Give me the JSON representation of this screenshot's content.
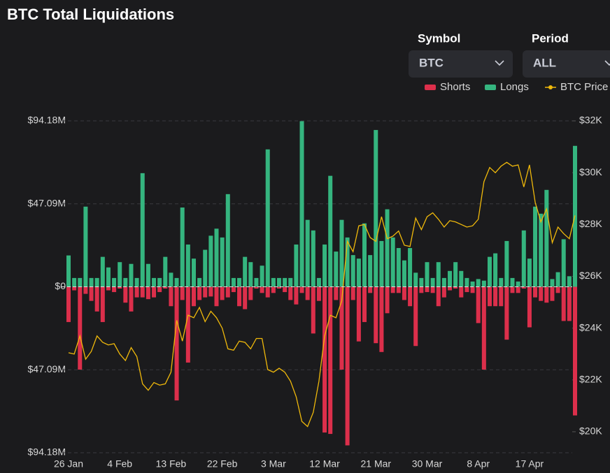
{
  "filters": [
    {
      "label": "Symbol",
      "value": "BTC"
    },
    {
      "label": "Period",
      "value": "ALL"
    }
  ],
  "chart_data": {
    "type": "bar",
    "title": "BTC Total Liquidations",
    "categories": [
      "26 Jan",
      null,
      null,
      null,
      null,
      null,
      null,
      null,
      null,
      "4 Feb",
      null,
      null,
      null,
      null,
      null,
      null,
      null,
      null,
      "13 Feb",
      null,
      null,
      null,
      null,
      null,
      null,
      null,
      null,
      "22 Feb",
      null,
      null,
      null,
      null,
      null,
      null,
      null,
      null,
      "3 Mar",
      null,
      null,
      null,
      null,
      null,
      null,
      null,
      null,
      "12 Mar",
      null,
      null,
      null,
      null,
      null,
      null,
      null,
      null,
      "21 Mar",
      null,
      null,
      null,
      null,
      null,
      null,
      null,
      null,
      "30 Mar",
      null,
      null,
      null,
      null,
      null,
      null,
      null,
      null,
      "8 Apr",
      null,
      null,
      null,
      null,
      null,
      null,
      null,
      null,
      "17 Apr",
      null,
      null,
      null,
      null,
      null,
      null,
      null,
      null
    ],
    "series": [
      {
        "name": "Shorts",
        "color": "#dc2f4b",
        "values": [
          -20,
          -2,
          -47,
          -4,
          -8,
          -14,
          -20,
          -2,
          -3,
          -1,
          -9,
          -14,
          -6,
          -6,
          -7,
          -6,
          -3,
          -1,
          -11,
          -64.5,
          -7.5,
          -43,
          -11,
          -7.5,
          -6,
          -5.5,
          -11,
          -7.5,
          -6,
          -3,
          -11,
          -12.7,
          -7.5,
          -1,
          -3.5,
          -6,
          -3.5,
          -1,
          -3,
          -7.5,
          -10,
          -3.5,
          -7.5,
          -26.5,
          -8,
          -82.7,
          -83.5,
          -7.5,
          -47,
          -90,
          -7.5,
          -31,
          -20,
          -3.5,
          -32,
          -37,
          -15,
          -3.5,
          -3.5,
          -7.5,
          -11,
          -33.6,
          -3.5,
          -3,
          -3.5,
          -11,
          -6,
          -2,
          -1,
          -6,
          -3,
          -3.5,
          -20.6,
          -47,
          -11,
          -11,
          -11,
          -30,
          -3.5,
          -3.5,
          -1,
          -23,
          -6,
          -8,
          -9,
          -8,
          -3.5,
          -19.4,
          -19.4,
          -73
        ]
      },
      {
        "name": "Longs",
        "color": "#35b57f",
        "values": [
          17.8,
          5,
          5,
          45.5,
          5,
          5,
          17,
          11,
          5,
          14,
          5,
          13,
          5,
          64.5,
          13,
          5,
          5,
          17,
          8,
          5,
          45,
          24,
          16,
          5,
          21,
          29,
          33,
          28,
          52.6,
          5,
          5,
          17,
          14,
          5,
          12,
          78,
          5,
          5,
          5,
          5,
          24,
          94,
          38,
          32,
          5,
          24,
          63,
          20,
          38,
          28,
          18,
          16,
          36,
          18,
          89,
          26,
          44,
          28,
          22,
          15,
          22,
          8,
          5,
          14,
          5,
          14,
          5,
          9,
          14,
          9,
          5,
          3,
          4.4,
          3.5,
          17,
          19,
          5,
          26,
          5,
          3,
          32,
          16,
          45.5,
          41.5,
          55,
          4.4,
          8.3,
          27,
          6,
          80
        ]
      },
      {
        "name": "BTC Price",
        "color": "#f0b90b",
        "axis": "y2",
        "type": "line",
        "values": [
          23.05,
          23.0,
          23.7,
          22.8,
          23.1,
          23.7,
          23.45,
          23.35,
          23.4,
          23.0,
          22.75,
          23.25,
          22.9,
          21.85,
          21.6,
          21.9,
          21.8,
          21.85,
          22.3,
          24.3,
          23.5,
          24.5,
          24.4,
          24.8,
          24.25,
          24.65,
          24.4,
          24.0,
          23.2,
          23.15,
          23.5,
          23.45,
          23.2,
          23.6,
          23.6,
          22.4,
          22.3,
          22.45,
          22.3,
          21.95,
          21.35,
          20.4,
          20.2,
          20.75,
          21.95,
          23.7,
          24.5,
          24.4,
          25.05,
          27.35,
          26.95,
          27.95,
          28.0,
          27.5,
          27.35,
          28.3,
          27.45,
          27.55,
          27.75,
          27.2,
          27.15,
          28.25,
          27.8,
          28.3,
          28.45,
          28.2,
          27.9,
          28.15,
          28.1,
          28.0,
          27.9,
          27.95,
          28.2,
          29.65,
          30.2,
          30.0,
          30.25,
          30.4,
          30.25,
          30.3,
          29.45,
          30.3,
          28.85,
          28.1,
          28.6,
          27.3,
          27.9,
          27.65,
          27.45,
          28.35
        ]
      }
    ],
    "ylim": [
      -94.18,
      94.18
    ],
    "yticks": [
      {
        "value": 94.18,
        "label": "$94.18M"
      },
      {
        "value": 47.09,
        "label": "$47.09M"
      },
      {
        "value": 0,
        "label": "$0"
      },
      {
        "value": -47.09,
        "label": "$47.09M"
      },
      {
        "value": -94.18,
        "label": "$94.18M"
      }
    ],
    "y2lim": [
      19.19,
      32
    ],
    "y2ticks": [
      {
        "value": 20,
        "label": "$20K"
      },
      {
        "value": 22,
        "label": "$22K"
      },
      {
        "value": 24,
        "label": "$24K"
      },
      {
        "value": 26,
        "label": "$26K"
      },
      {
        "value": 28,
        "label": "$28K"
      },
      {
        "value": 30,
        "label": "$30K"
      },
      {
        "value": 32,
        "label": "$32K"
      }
    ],
    "grid": true,
    "legend": "top-right"
  }
}
